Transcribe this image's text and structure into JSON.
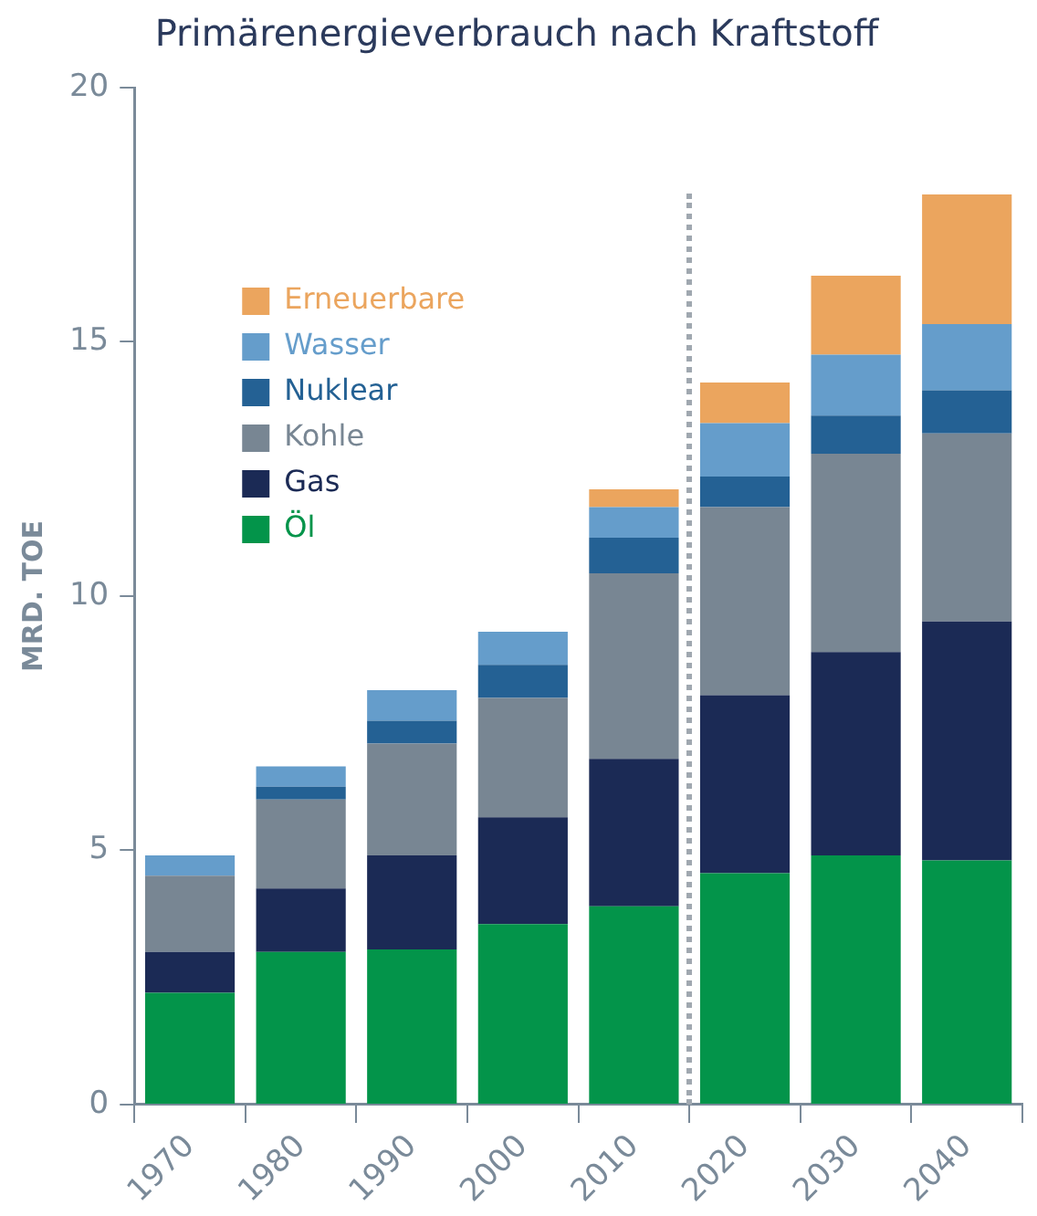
{
  "chart_data": {
    "type": "bar",
    "title": "Primärenergieverbrauch nach Kraftstoff",
    "ylabel": "MRD. TOE",
    "categories": [
      "1970",
      "1980",
      "1990",
      "2000",
      "2010",
      "2020",
      "2030",
      "2040"
    ],
    "stacked": true,
    "ylim": [
      0,
      20
    ],
    "yticks": [
      0,
      5,
      10,
      15,
      20
    ],
    "grid": false,
    "legend": "top left",
    "series": [
      {
        "name": "Öl",
        "color": "#03944a",
        "values": [
          2.2,
          3.0,
          3.05,
          3.55,
          3.9,
          4.55,
          4.9,
          4.8
        ]
      },
      {
        "name": "Gas",
        "color": "#1b2a55",
        "values": [
          0.8,
          1.25,
          1.85,
          2.1,
          2.9,
          3.5,
          4.0,
          4.7
        ]
      },
      {
        "name": "Kohle",
        "color": "#788693",
        "values": [
          1.5,
          1.75,
          2.2,
          2.35,
          3.65,
          3.7,
          3.9,
          3.7
        ]
      },
      {
        "name": "Nuklear",
        "color": "#246194",
        "values": [
          0,
          0.25,
          0.45,
          0.65,
          0.7,
          0.6,
          0.75,
          0.85
        ]
      },
      {
        "name": "Wasser",
        "color": "#659dcb",
        "values": [
          0.4,
          0.4,
          0.6,
          0.65,
          0.6,
          1.05,
          1.2,
          1.3
        ]
      },
      {
        "name": "Erneuerbare",
        "color": "#eba55e",
        "values": [
          0,
          0,
          0,
          0,
          0.35,
          0.8,
          1.55,
          2.55
        ]
      }
    ]
  }
}
